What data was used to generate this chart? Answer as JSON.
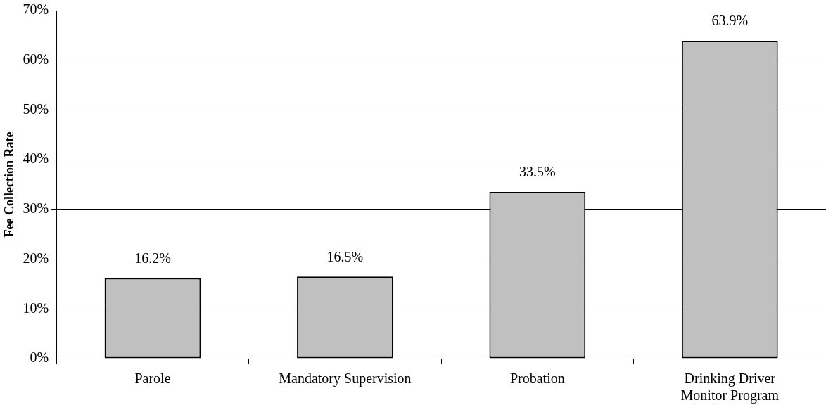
{
  "chart_data": {
    "type": "bar",
    "ylabel": "Fee Collection Rate",
    "categories": [
      "Parole",
      "Mandatory Supervision",
      "Probation",
      "Drinking Driver Monitor Program"
    ],
    "values": [
      16.2,
      16.5,
      33.5,
      63.9
    ],
    "value_labels": [
      "16.2%",
      "16.5%",
      "33.5%",
      "63.9%"
    ],
    "color": "#c0c0c0",
    "ylim": [
      0,
      70
    ],
    "yticks": [
      {
        "value": 0,
        "label": "0%"
      },
      {
        "value": 10,
        "label": "10%"
      },
      {
        "value": 20,
        "label": "20%"
      },
      {
        "value": 30,
        "label": "30%"
      },
      {
        "value": 40,
        "label": "40%"
      },
      {
        "value": 50,
        "label": "50%"
      },
      {
        "value": 60,
        "label": "60%"
      },
      {
        "value": 70,
        "label": "70%"
      }
    ],
    "grid": "y"
  }
}
